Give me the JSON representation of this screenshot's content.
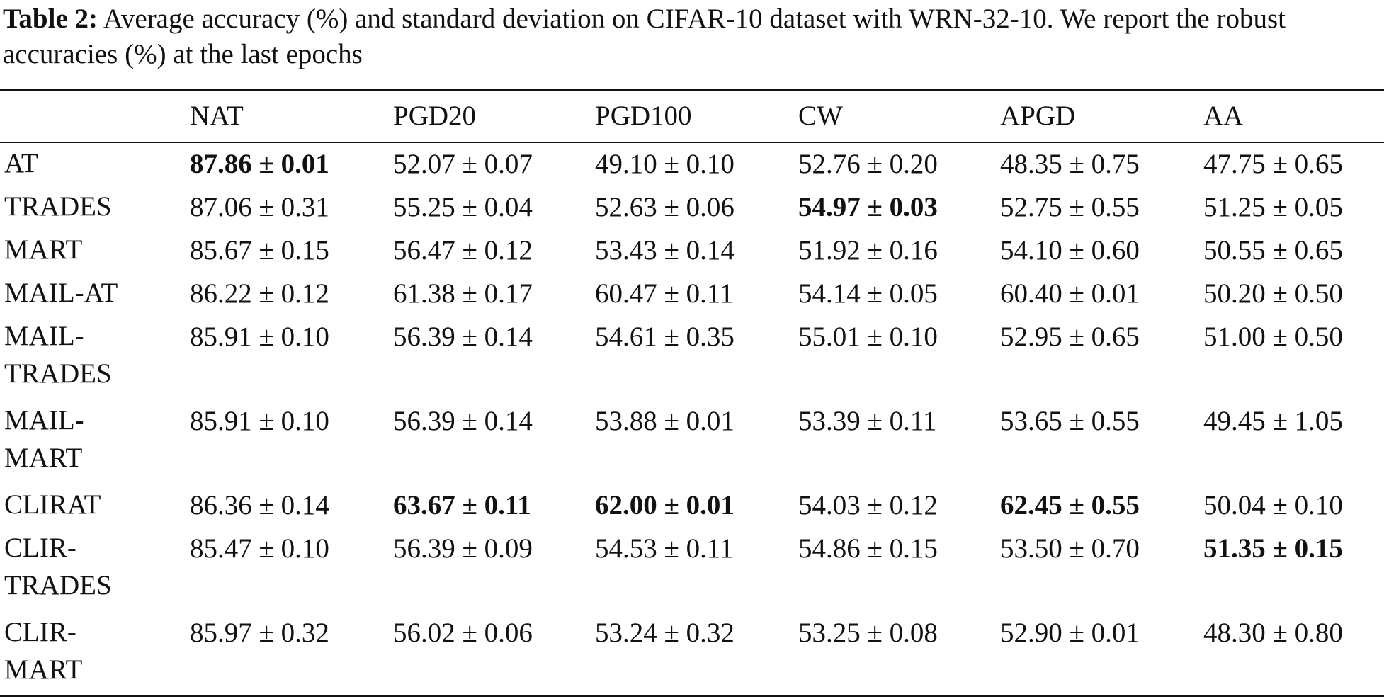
{
  "caption": {
    "label": "Table 2:",
    "text": " Average accuracy (%) and standard deviation on CIFAR-10 dataset with WRN-32-10. We report the robust accuracies (%) at the last epochs"
  },
  "table": {
    "headers": [
      "",
      "NAT",
      "PGD20",
      "PGD100",
      "CW",
      "APGD",
      "AA"
    ],
    "rows": [
      {
        "method": "AT",
        "cells": [
          "87.86 ± 0.01",
          "52.07 ± 0.07",
          "49.10 ± 0.10",
          "52.76 ± 0.20",
          "48.35 ± 0.75",
          "47.75 ± 0.65"
        ]
      },
      {
        "method": "TRADES",
        "cells": [
          "87.06 ± 0.31",
          "55.25 ± 0.04",
          "52.63 ± 0.06",
          "54.97 ± 0.03",
          "52.75 ± 0.55",
          "51.25 ± 0.05"
        ]
      },
      {
        "method": "MART",
        "cells": [
          "85.67 ± 0.15",
          "56.47 ± 0.12",
          "53.43 ± 0.14",
          "51.92 ± 0.16",
          "54.10 ± 0.60",
          "50.55 ± 0.65"
        ]
      },
      {
        "method": "MAIL-AT",
        "cells": [
          "86.22 ± 0.12",
          "61.38 ± 0.17",
          "60.47 ± 0.11",
          "54.14 ± 0.05",
          "60.40 ± 0.01",
          "50.20 ± 0.50"
        ]
      },
      {
        "method": "MAIL-\nTRADES",
        "cells": [
          "85.91 ± 0.10",
          "56.39 ± 0.14",
          "54.61 ± 0.35",
          "55.01 ± 0.10",
          "52.95 ± 0.65",
          "51.00 ± 0.50"
        ]
      },
      {
        "method": "MAIL-\nMART",
        "cells": [
          "85.91 ± 0.10",
          "56.39 ± 0.14",
          "53.88 ± 0.01",
          "53.39 ± 0.11",
          "53.65 ± 0.55",
          "49.45 ± 1.05"
        ]
      },
      {
        "method": "CLIRAT",
        "cells": [
          "86.36 ± 0.14",
          "63.67 ± 0.11",
          "62.00 ± 0.01",
          "54.03 ± 0.12",
          "62.45 ± 0.55",
          "50.04 ± 0.10"
        ]
      },
      {
        "method": "CLIR-\nTRADES",
        "cells": [
          "85.47 ± 0.10",
          "56.39 ± 0.09",
          "54.53 ± 0.11",
          "54.86 ± 0.15",
          "53.50 ± 0.70",
          "51.35 ± 0.15"
        ]
      },
      {
        "method": "CLIR-\nMART",
        "cells": [
          "85.97 ± 0.32",
          "56.02 ± 0.06",
          "53.24 ± 0.32",
          "53.25 ± 0.08",
          "52.90 ± 0.01",
          "48.30 ± 0.80"
        ]
      }
    ]
  }
}
